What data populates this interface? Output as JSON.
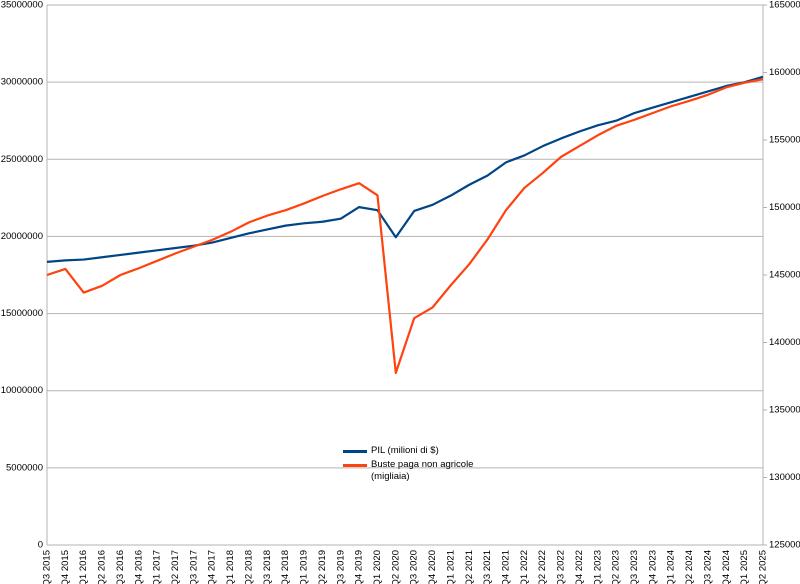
{
  "chart_data": {
    "type": "line",
    "categories": [
      "Q3 2015",
      "Q4 2015",
      "Q1 2016",
      "Q2 2016",
      "Q3 2016",
      "Q4 2016",
      "Q1 2017",
      "Q2 2017",
      "Q3 2017",
      "Q4 2017",
      "Q1 2018",
      "Q2 2018",
      "Q3 2018",
      "Q4 2018",
      "Q1 2019",
      "Q2 2019",
      "Q3 2019",
      "Q4 2019",
      "Q1 2020",
      "Q2 2020",
      "Q3 2020",
      "Q4 2020",
      "Q1 2021",
      "Q2 2021",
      "Q3 2021",
      "Q4 2021",
      "Q1 2022",
      "Q2 2022",
      "Q3 2022",
      "Q4 2022",
      "Q1 2023",
      "Q2 2023",
      "Q3 2023",
      "Q4 2023",
      "Q1 2024",
      "Q2 2024",
      "Q3 2024",
      "Q4 2024",
      "Q1 2025",
      "Q2 2025"
    ],
    "series": [
      {
        "name": "PIL (milioni di $)",
        "color": "#004586",
        "axis": "y",
        "values": [
          18350000,
          18450000,
          18500000,
          18650000,
          18800000,
          18950000,
          19100000,
          19250000,
          19400000,
          19600000,
          19900000,
          20200000,
          20450000,
          20700000,
          20850000,
          20950000,
          21150000,
          21900000,
          21700000,
          19950000,
          21650000,
          22050000,
          22650000,
          23350000,
          23950000,
          24800000,
          25250000,
          25850000,
          26350000,
          26800000,
          27200000,
          27500000,
          28000000,
          28350000,
          28700000,
          29050000,
          29400000,
          29750000,
          30000000,
          30350000
        ]
      },
      {
        "name": "Buste paga non agricole (migliaia)",
        "color": "#ff420e",
        "axis": "y2",
        "values": [
          145000,
          145450,
          143700,
          144200,
          145000,
          145500,
          146050,
          146600,
          147100,
          147600,
          148200,
          148900,
          149400,
          149800,
          150300,
          150850,
          151350,
          151800,
          150900,
          137750,
          141800,
          142600,
          144250,
          145800,
          147650,
          149800,
          151450,
          152550,
          153750,
          154550,
          155350,
          156050,
          156500,
          157000,
          157500,
          157900,
          158350,
          158900,
          159250,
          159500
        ]
      }
    ],
    "ylim": [
      0,
      35000000
    ],
    "yticks": [
      0,
      5000000,
      10000000,
      15000000,
      20000000,
      25000000,
      30000000,
      35000000
    ],
    "y2lim": [
      125000,
      165000
    ],
    "y2ticks": [
      125000,
      130000,
      135000,
      140000,
      145000,
      150000,
      155000,
      160000,
      165000
    ],
    "grid": true
  }
}
